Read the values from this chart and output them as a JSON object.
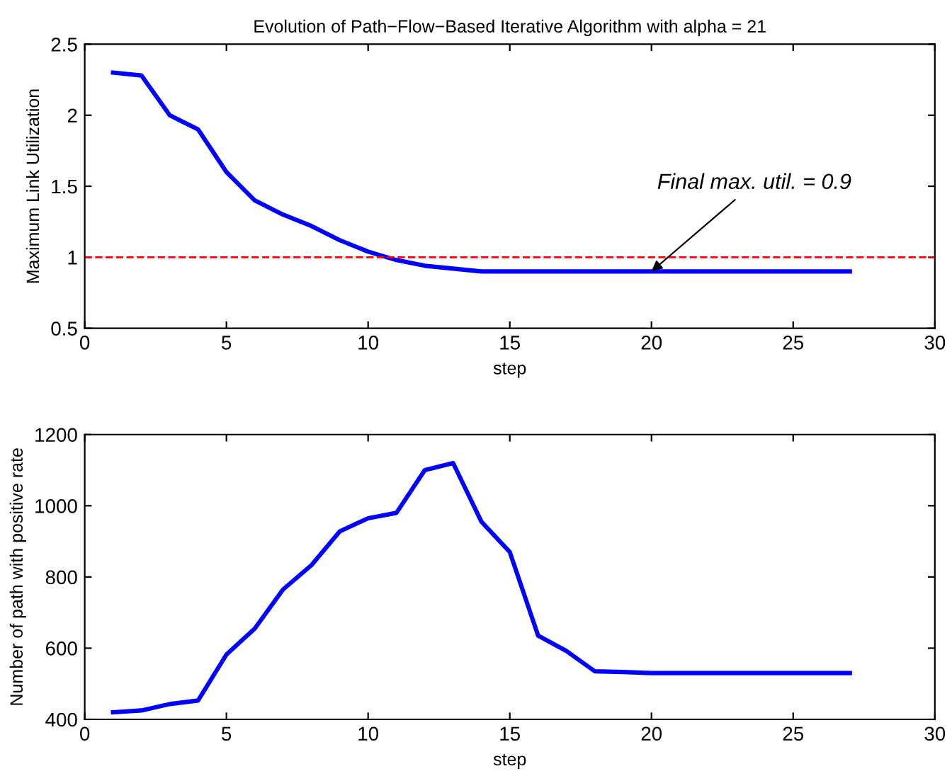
{
  "chart_data": [
    {
      "type": "line",
      "title": "Evolution of Path−Flow−Based Iterative Algorithm with alpha = 21",
      "xlabel": "step",
      "ylabel": "Maximum Link Utilization",
      "x": [
        1,
        2,
        3,
        4,
        5,
        6,
        7,
        8,
        9,
        10,
        11,
        12,
        13,
        14,
        15,
        16,
        17,
        18,
        19,
        20,
        21,
        22,
        23,
        24,
        25,
        26,
        27
      ],
      "series": [
        {
          "color": "#0000ff",
          "values": [
            2.3,
            2.28,
            2.0,
            1.9,
            1.6,
            1.4,
            1.3,
            1.22,
            1.12,
            1.04,
            0.98,
            0.94,
            0.92,
            0.9,
            0.9,
            0.9,
            0.9,
            0.9,
            0.9,
            0.9,
            0.9,
            0.9,
            0.9,
            0.9,
            0.9,
            0.9,
            0.9
          ]
        }
      ],
      "ref_lines": [
        {
          "axis": "y",
          "value": 1,
          "color": "#ff0000",
          "line_style": "dashed"
        }
      ],
      "annotations": [
        {
          "text": "Final max. util. = 0.9",
          "x": 20,
          "y": 0.9
        }
      ],
      "xlim": [
        0,
        30
      ],
      "xticks": [
        0,
        5,
        10,
        15,
        20,
        25,
        30
      ],
      "ylim": [
        0.5,
        2.5
      ],
      "yticks": [
        0.5,
        1,
        1.5,
        2,
        2.5
      ],
      "grid": false,
      "line_style": "solid"
    },
    {
      "type": "line",
      "xlabel": "step",
      "ylabel": "Number of path with positive rate",
      "x": [
        1,
        2,
        3,
        4,
        5,
        6,
        7,
        8,
        9,
        10,
        11,
        12,
        13,
        14,
        15,
        16,
        17,
        18,
        19,
        20,
        21,
        22,
        23,
        24,
        25,
        26,
        27
      ],
      "series": [
        {
          "color": "#0000ff",
          "values": [
            420,
            425,
            443,
            453,
            582,
            655,
            765,
            833,
            928,
            965,
            980,
            1100,
            1120,
            955,
            870,
            635,
            592,
            535,
            533,
            530,
            530,
            530,
            530,
            530,
            530,
            530,
            530
          ]
        }
      ],
      "xlim": [
        0,
        30
      ],
      "xticks": [
        0,
        5,
        10,
        15,
        20,
        25,
        30
      ],
      "ylim": [
        400,
        1200
      ],
      "yticks": [
        400,
        600,
        800,
        1000,
        1200
      ],
      "grid": false,
      "line_style": "solid"
    }
  ]
}
